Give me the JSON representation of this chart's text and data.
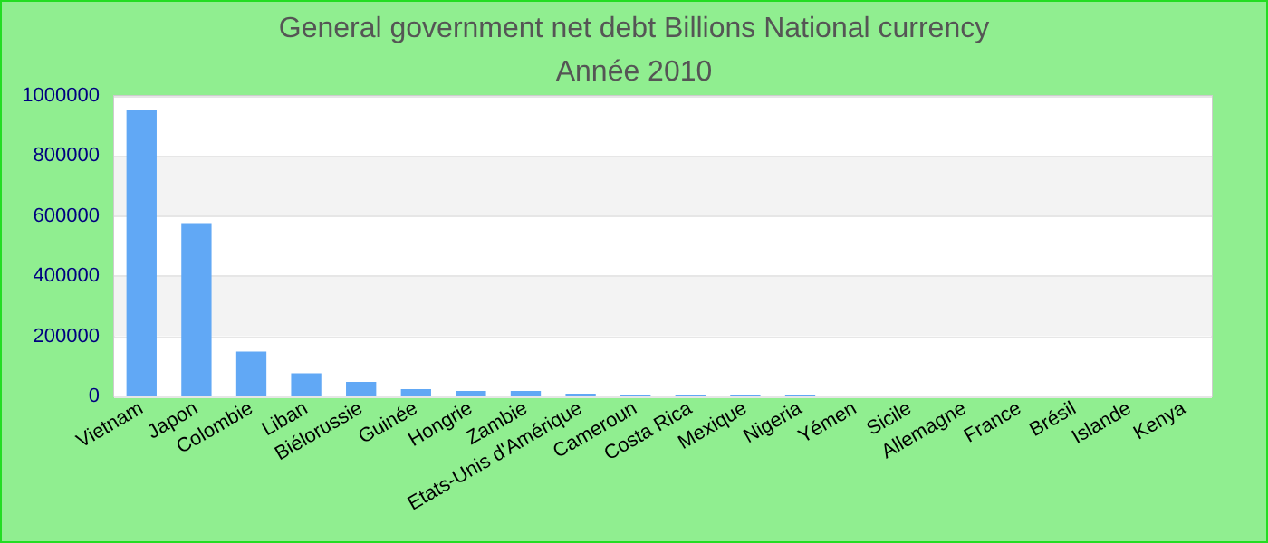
{
  "chart_data": {
    "type": "bar",
    "title": "General government net debt Billions National currency",
    "subtitle": "Année 2010",
    "categories": [
      "Vietnam",
      "Japon",
      "Colombie",
      "Liban",
      "Biélorussie",
      "Guinée",
      "Hongrie",
      "Zambie",
      "Etats-Unis d'Amérique",
      "Cameroun",
      "Costa Rica",
      "Mexique",
      "Nigeria",
      "Yémen",
      "Sicile",
      "Allemagne",
      "France",
      "Brésil",
      "Islande",
      "Kenya"
    ],
    "values": [
      952000,
      577000,
      149000,
      77000,
      48000,
      24000,
      18000,
      18000,
      9000,
      4000,
      3000,
      3000,
      3000,
      null,
      null,
      null,
      null,
      null,
      null,
      null
    ],
    "color": "#61a8f5",
    "ylim": [
      0,
      1000000
    ],
    "yticks": [
      0,
      200000,
      400000,
      600000,
      800000,
      1000000
    ],
    "grid": "y"
  }
}
